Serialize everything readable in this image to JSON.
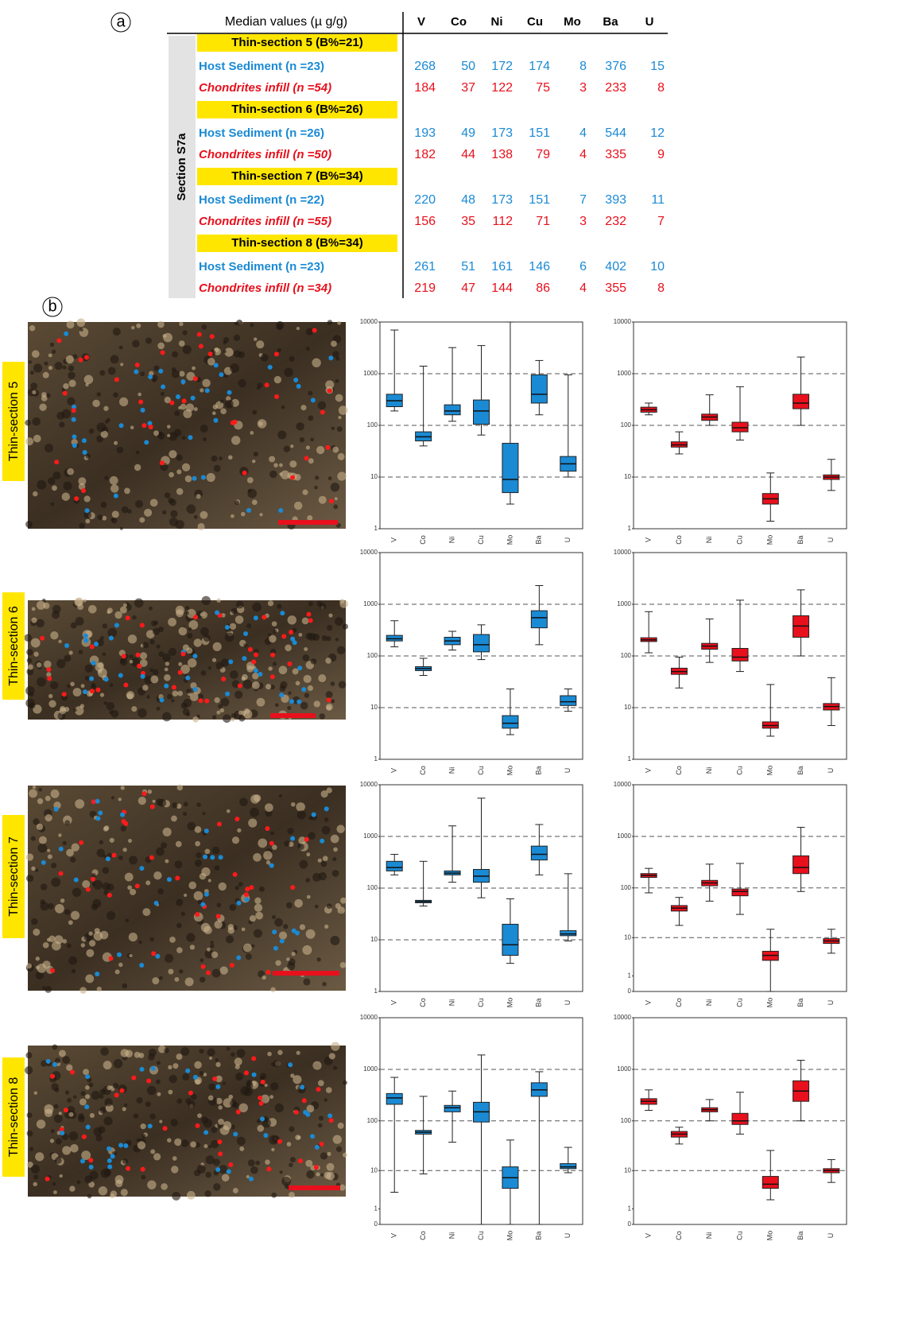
{
  "panel_labels": [
    "a",
    "b"
  ],
  "table": {
    "header": [
      "Median values (µ g/g)",
      "V",
      "Co",
      "Ni",
      "Cu",
      "Mo",
      "Ba",
      "U"
    ],
    "side_label": "Section S7a",
    "groups": [
      {
        "title": "Thin-section 5 (B%=21)",
        "rows": [
          {
            "label": "Host Sediment (n =23)",
            "values": [
              268,
              50,
              172,
              174,
              8,
              376,
              15
            ]
          },
          {
            "label": "Chondrites  infill (n =54)",
            "values": [
              184,
              37,
              122,
              75,
              3,
              233,
              8
            ]
          }
        ]
      },
      {
        "title": "Thin-section 6 (B%=26)",
        "rows": [
          {
            "label": "Host Sediment (n =26)",
            "values": [
              193,
              49,
              173,
              151,
              4,
              544,
              12
            ]
          },
          {
            "label": "Chondrites  infill (n =50)",
            "values": [
              182,
              44,
              138,
              79,
              4,
              335,
              9
            ]
          }
        ]
      },
      {
        "title": "Thin-section 7 (B%=34)",
        "rows": [
          {
            "label": "Host Sediment (n =22)",
            "values": [
              220,
              48,
              173,
              151,
              7,
              393,
              11
            ]
          },
          {
            "label": "Chondrites  infill (n =55)",
            "values": [
              156,
              35,
              112,
              71,
              3,
              232,
              7
            ]
          }
        ]
      },
      {
        "title": "Thin-section 8 (B%=34)",
        "rows": [
          {
            "label": "Host Sediment (n =23)",
            "values": [
              261,
              51,
              161,
              146,
              6,
              402,
              10
            ]
          },
          {
            "label": "Chondrites  infill (n =34)",
            "values": [
              219,
              47,
              144,
              86,
              4,
              355,
              8
            ]
          }
        ]
      }
    ]
  },
  "sections": [
    "Thin-section 5",
    "Thin-section 6",
    "Thin-section 7",
    "Thin-section 8"
  ],
  "chart_data": [
    {
      "type": "box",
      "color": "#1a8ad4",
      "scale": "log",
      "grid": true,
      "categories": [
        "V",
        "Co",
        "Ni",
        "Cu",
        "Mo",
        "Ba",
        "U"
      ],
      "ylim": [
        1,
        10000
      ],
      "yticks": [
        1,
        10,
        100,
        1000,
        10000
      ],
      "min": [
        190,
        40,
        120,
        65,
        3,
        160,
        10
      ],
      "q1": [
        230,
        50,
        160,
        105,
        5,
        270,
        13
      ],
      "median": [
        300,
        60,
        190,
        190,
        9,
        400,
        18
      ],
      "q3": [
        400,
        75,
        250,
        310,
        45,
        950,
        25
      ],
      "max": [
        7000,
        1400,
        3200,
        3500,
        10000,
        1800,
        950
      ]
    },
    {
      "type": "box",
      "color": "#e8101c",
      "scale": "log",
      "grid": true,
      "categories": [
        "V",
        "Co",
        "Ni",
        "Cu",
        "Mo",
        "Ba",
        "U"
      ],
      "ylim": [
        1,
        10000
      ],
      "yticks": [
        1,
        10,
        100,
        1000,
        10000
      ],
      "min": [
        160,
        28,
        100,
        52,
        1.4,
        100,
        5.5
      ],
      "q1": [
        180,
        38,
        125,
        75,
        3,
        210,
        9
      ],
      "median": [
        200,
        42,
        145,
        90,
        3.8,
        270,
        10
      ],
      "q3": [
        225,
        48,
        165,
        115,
        4.8,
        400,
        11
      ],
      "max": [
        270,
        75,
        390,
        560,
        12,
        2100,
        22
      ]
    },
    {
      "type": "box",
      "color": "#1a8ad4",
      "scale": "log",
      "grid": true,
      "categories": [
        "V",
        "Co",
        "Ni",
        "Cu",
        "Mo",
        "Ba",
        "U"
      ],
      "ylim": [
        1,
        10000
      ],
      "yticks": [
        1,
        10,
        100,
        1000,
        10000
      ],
      "min": [
        150,
        42,
        130,
        85,
        3,
        165,
        8.5
      ],
      "q1": [
        195,
        52,
        165,
        120,
        4,
        350,
        11
      ],
      "median": [
        215,
        57,
        195,
        165,
        5,
        550,
        13
      ],
      "q3": [
        250,
        62,
        230,
        260,
        7,
        750,
        17
      ],
      "max": [
        480,
        90,
        300,
        400,
        23,
        2300,
        23
      ]
    },
    {
      "type": "box",
      "color": "#e8101c",
      "scale": "log",
      "grid": true,
      "categories": [
        "V",
        "Co",
        "Ni",
        "Cu",
        "Mo",
        "Ba",
        "U"
      ],
      "ylim": [
        1,
        10000
      ],
      "yticks": [
        1,
        10,
        100,
        1000,
        10000
      ],
      "min": [
        115,
        24,
        75,
        50,
        2.8,
        100,
        4.5
      ],
      "q1": [
        190,
        44,
        135,
        80,
        4,
        230,
        9
      ],
      "median": [
        205,
        50,
        155,
        95,
        4.5,
        380,
        10.5
      ],
      "q3": [
        225,
        58,
        175,
        140,
        5.3,
        600,
        12
      ],
      "max": [
        720,
        95,
        520,
        1200,
        28,
        1900,
        38
      ]
    },
    {
      "type": "box",
      "color": "#1a8ad4",
      "scale": "log",
      "grid": true,
      "categories": [
        "V",
        "Co",
        "Ni",
        "Cu",
        "Mo",
        "Ba",
        "U"
      ],
      "ylim": [
        1,
        10000
      ],
      "yticks": [
        1,
        10,
        100,
        1000,
        10000
      ],
      "min": [
        180,
        45,
        130,
        65,
        3.5,
        180,
        9.5
      ],
      "q1": [
        215,
        52,
        180,
        130,
        5,
        350,
        12
      ],
      "median": [
        250,
        55,
        195,
        170,
        8,
        450,
        13
      ],
      "q3": [
        330,
        58,
        215,
        230,
        20,
        650,
        15
      ],
      "max": [
        450,
        330,
        1600,
        5500,
        62,
        1700,
        190
      ]
    },
    {
      "type": "box",
      "color": "#e8101c",
      "scale": "symlog",
      "grid": true,
      "categories": [
        "V",
        "Co",
        "Ni",
        "Cu",
        "Mo",
        "Ba",
        "U"
      ],
      "ylim": [
        0,
        10000
      ],
      "yticks": [
        0,
        1,
        10,
        100,
        1000,
        10000
      ],
      "min": [
        80,
        18,
        55,
        30,
        0,
        85,
        4.5
      ],
      "q1": [
        160,
        35,
        110,
        70,
        3,
        190,
        7.5
      ],
      "median": [
        175,
        40,
        125,
        85,
        4,
        250,
        8.5
      ],
      "q3": [
        190,
        45,
        140,
        95,
        5,
        420,
        9.5
      ],
      "max": [
        240,
        65,
        290,
        300,
        15,
        1500,
        15
      ]
    },
    {
      "type": "box",
      "color": "#1a8ad4",
      "scale": "symlog",
      "grid": true,
      "categories": [
        "V",
        "Co",
        "Ni",
        "Cu",
        "Mo",
        "Ba",
        "U"
      ],
      "ylim": [
        0,
        10000
      ],
      "yticks": [
        0,
        1,
        10,
        100,
        1000,
        10000
      ],
      "min": [
        3.2,
        8.5,
        38,
        0,
        0,
        0,
        9
      ],
      "q1": [
        210,
        55,
        150,
        95,
        4,
        300,
        11
      ],
      "median": [
        280,
        60,
        180,
        150,
        7,
        400,
        12
      ],
      "q3": [
        340,
        65,
        200,
        230,
        12,
        550,
        14
      ],
      "max": [
        700,
        300,
        380,
        1900,
        42,
        900,
        30
      ]
    },
    {
      "type": "box",
      "color": "#e8101c",
      "scale": "symlog",
      "grid": true,
      "categories": [
        "V",
        "Co",
        "Ni",
        "Cu",
        "Mo",
        "Ba",
        "U"
      ],
      "ylim": [
        0,
        10000
      ],
      "yticks": [
        0,
        1,
        10,
        100,
        1000,
        10000
      ],
      "min": [
        160,
        35,
        100,
        55,
        2,
        100,
        5.5
      ],
      "q1": [
        210,
        48,
        150,
        85,
        4,
        240,
        9
      ],
      "median": [
        240,
        55,
        165,
        100,
        5,
        380,
        10
      ],
      "q3": [
        270,
        62,
        180,
        140,
        7.5,
        600,
        11
      ],
      "max": [
        400,
        75,
        260,
        360,
        26,
        1500,
        17
      ]
    }
  ]
}
